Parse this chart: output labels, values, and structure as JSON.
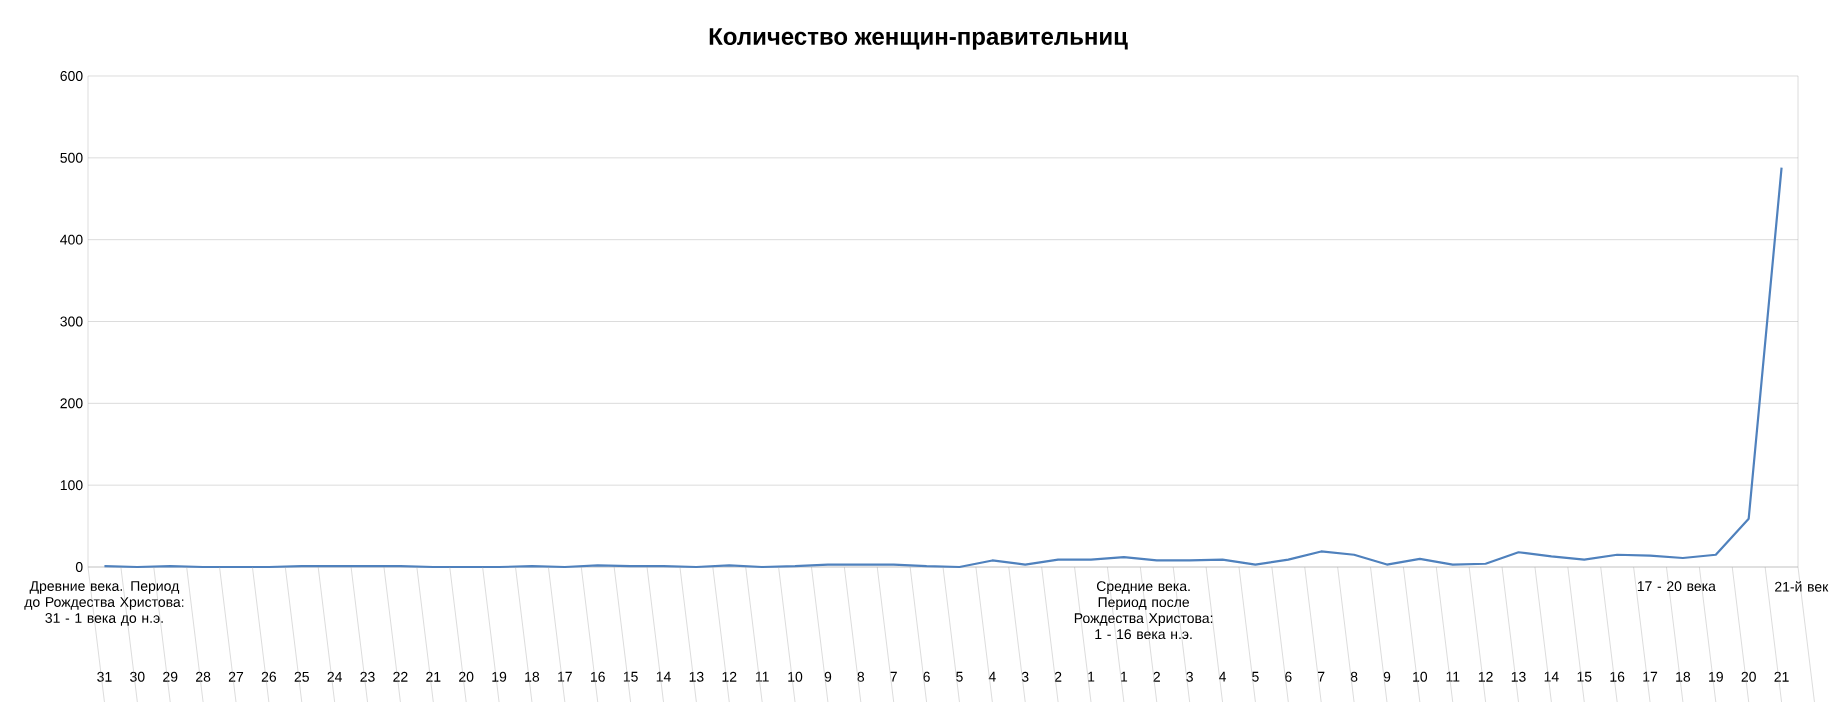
{
  "chart_data": {
    "type": "line",
    "title": "Количество женщин-правительниц",
    "categories": [
      "31",
      "30",
      "29",
      "28",
      "27",
      "26",
      "25",
      "24",
      "23",
      "22",
      "21",
      "20",
      "19",
      "18",
      "17",
      "16",
      "15",
      "14",
      "13",
      "12",
      "11",
      "10",
      "9",
      "8",
      "7",
      "6",
      "5",
      "4",
      "3",
      "2",
      "1",
      "1",
      "2",
      "3",
      "4",
      "5",
      "6",
      "7",
      "8",
      "9",
      "10",
      "11",
      "12",
      "13",
      "14",
      "15",
      "16",
      "17",
      "18",
      "19",
      "20",
      "21"
    ],
    "series": [
      {
        "color": "#4f81bd",
        "values": [
          1,
          0,
          1,
          0,
          0,
          0,
          1,
          1,
          1,
          1,
          0,
          0,
          0,
          1,
          0,
          2,
          1,
          1,
          0,
          2,
          0,
          1,
          3,
          3,
          3,
          1,
          0,
          8,
          3,
          9,
          9,
          12,
          8,
          8,
          9,
          3,
          9,
          19,
          15,
          3,
          10,
          3,
          4,
          18,
          13,
          9,
          15,
          14,
          11,
          15,
          59,
          488
        ]
      }
    ],
    "ylim": [
      0,
      600
    ],
    "yticks": [
      0,
      100,
      200,
      300,
      400,
      500,
      600
    ],
    "grid": "y",
    "marker": "none",
    "line_style": "solid",
    "annotations": [
      "Древние века. Период до Рождества Христова: 31 - 1 века до н.э.",
      "Средние века. Период после Рождества Христова: 1 - 16 века н.э.",
      "17 - 20 века",
      "21-й век"
    ]
  }
}
